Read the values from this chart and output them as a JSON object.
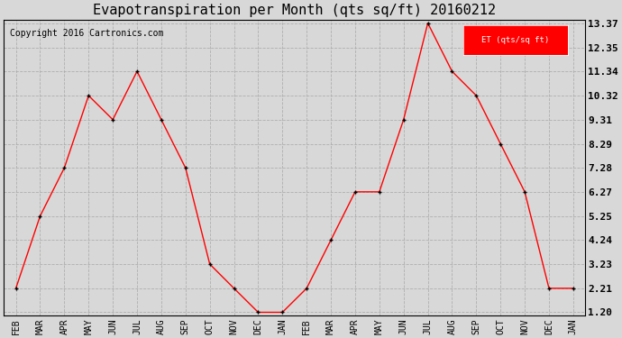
{
  "title": "Evapotranspiration per Month (qts sq/ft) 20160212",
  "copyright": "Copyright 2016 Cartronics.com",
  "legend_label": "ET (qts/sq ft)",
  "months": [
    "FEB",
    "MAR",
    "APR",
    "MAY",
    "JUN",
    "JUL",
    "AUG",
    "SEP",
    "OCT",
    "NOV",
    "DEC",
    "JAN",
    "FEB",
    "MAR",
    "APR",
    "MAY",
    "JUN",
    "JUL",
    "AUG",
    "SEP",
    "OCT",
    "NOV",
    "DEC",
    "JAN"
  ],
  "values": [
    2.21,
    5.25,
    7.28,
    10.32,
    9.31,
    11.34,
    9.31,
    7.28,
    3.23,
    2.21,
    1.2,
    1.2,
    2.21,
    4.24,
    6.27,
    6.27,
    9.31,
    13.37,
    11.34,
    10.32,
    8.29,
    6.27,
    2.21,
    2.21
  ],
  "yticks": [
    1.2,
    2.21,
    3.23,
    4.24,
    5.25,
    6.27,
    7.28,
    8.29,
    9.31,
    10.32,
    11.34,
    12.35,
    13.37
  ],
  "line_color": "red",
  "marker_color": "black",
  "bg_color": "#d8d8d8",
  "plot_bg_color": "#d8d8d8",
  "legend_bg": "red",
  "legend_text_color": "white",
  "title_fontsize": 11,
  "copyright_fontsize": 7,
  "axis_label_fontsize": 7,
  "ytick_fontsize": 8
}
